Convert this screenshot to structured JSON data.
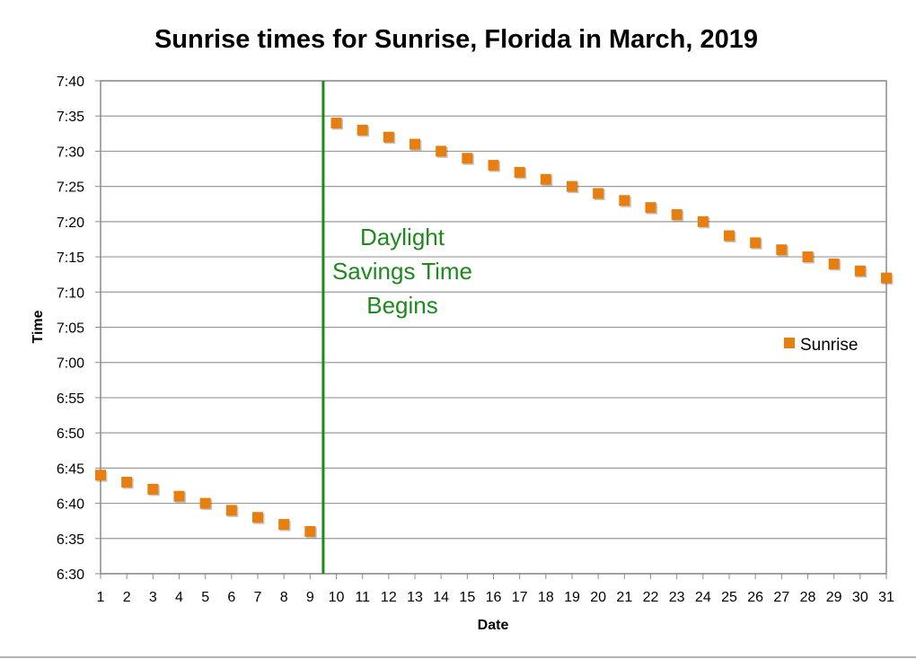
{
  "chart_data": {
    "type": "scatter",
    "title": "Sunrise times for Sunrise, Florida in March, 2019",
    "xlabel": "Date",
    "ylabel": "Time",
    "xlim": [
      1,
      31
    ],
    "ylim": [
      "6:30",
      "7:40"
    ],
    "x_ticks": [
      "1",
      "2",
      "3",
      "4",
      "5",
      "6",
      "7",
      "8",
      "9",
      "10",
      "11",
      "12",
      "13",
      "14",
      "15",
      "16",
      "17",
      "18",
      "19",
      "20",
      "21",
      "22",
      "23",
      "24",
      "25",
      "26",
      "27",
      "28",
      "29",
      "30",
      "31"
    ],
    "y_ticks": [
      "6:30",
      "6:35",
      "6:40",
      "6:45",
      "6:50",
      "6:55",
      "7:00",
      "7:05",
      "7:10",
      "7:15",
      "7:20",
      "7:25",
      "7:30",
      "7:35",
      "7:40"
    ],
    "grid": "horizontal",
    "legend": "right",
    "series": [
      {
        "name": "Sunrise",
        "color": "#E67E10",
        "marker": "square",
        "x": [
          1,
          2,
          3,
          4,
          5,
          6,
          7,
          8,
          9,
          10,
          11,
          12,
          13,
          14,
          15,
          16,
          17,
          18,
          19,
          20,
          21,
          22,
          23,
          24,
          25,
          26,
          27,
          28,
          29,
          30,
          31
        ],
        "y": [
          "6:44",
          "6:43",
          "6:42",
          "6:41",
          "6:40",
          "6:39",
          "6:38",
          "6:37",
          "6:36",
          "7:34",
          "7:33",
          "7:32",
          "7:31",
          "7:30",
          "7:29",
          "7:28",
          "7:27",
          "7:26",
          "7:25",
          "7:24",
          "7:23",
          "7:22",
          "7:21",
          "7:20",
          "7:18",
          "7:17",
          "7:16",
          "7:15",
          "7:14",
          "7:13",
          "7:12"
        ]
      }
    ],
    "annotations": [
      {
        "type": "vertical-line",
        "x": 9.5,
        "color": "#1E8A1E",
        "text_lines": [
          "Daylight",
          "Savings Time",
          "Begins"
        ]
      }
    ]
  }
}
